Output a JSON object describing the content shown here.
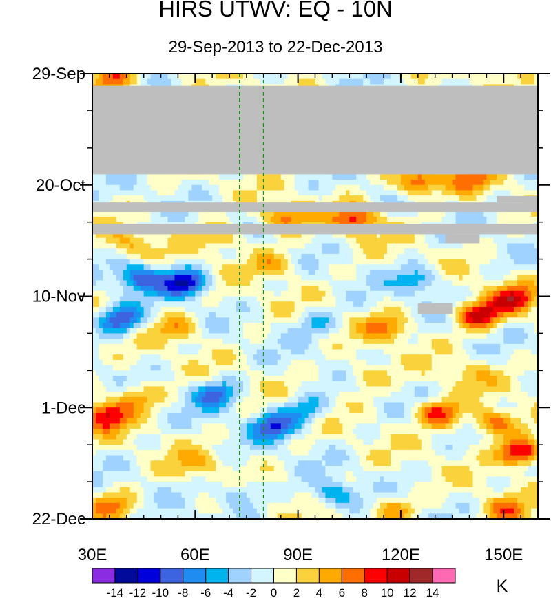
{
  "chart_data": {
    "type": "heatmap",
    "title": "HIRS UTWV: EQ - 10N",
    "subtitle": "29-Sep-2013 to 22-Dec-2013",
    "x_axis": {
      "range": [
        30,
        160
      ],
      "ticks": [
        {
          "value": 30,
          "label": "30E"
        },
        {
          "value": 60,
          "label": "60E"
        },
        {
          "value": 90,
          "label": "90E"
        },
        {
          "value": 120,
          "label": "120E"
        },
        {
          "value": 150,
          "label": "150E"
        }
      ],
      "minor_step": 5,
      "reference_lines": [
        73,
        80
      ]
    },
    "y_axis": {
      "range_days": [
        0,
        84
      ],
      "orientation": "top-to-bottom",
      "ticks": [
        {
          "day": 0,
          "label": "29-Sep"
        },
        {
          "day": 21,
          "label": "20-Oct"
        },
        {
          "day": 42,
          "label": "10-Nov"
        },
        {
          "day": 63,
          "label": "1-Dec"
        },
        {
          "day": 84,
          "label": "22-Dec"
        }
      ],
      "minor_step": 7
    },
    "missing_data": [
      {
        "lon": [
          30,
          160
        ],
        "day": [
          2.3,
          19.0
        ]
      },
      {
        "lon": [
          30,
          160
        ],
        "day": [
          24.3,
          26.1
        ]
      },
      {
        "lon": [
          148,
          160
        ],
        "day": [
          23.1,
          24.3
        ]
      },
      {
        "lon": [
          30,
          160
        ],
        "day": [
          28.3,
          30.3
        ]
      },
      {
        "lon": [
          133,
          143
        ],
        "day": [
          30.3,
          32.0
        ]
      },
      {
        "lon": [
          125,
          135
        ],
        "day": [
          43.3,
          45.3
        ]
      }
    ],
    "anomaly_features": [
      {
        "lon": 57,
        "day": 39.5,
        "value": -12
      },
      {
        "lon": 44,
        "day": 38.5,
        "value": -9
      },
      {
        "lon": 38,
        "day": 46.5,
        "value": -10
      },
      {
        "lon": 66,
        "day": 60.5,
        "value": -8
      },
      {
        "lon": 83,
        "day": 66.5,
        "value": -9
      },
      {
        "lon": 92,
        "day": 63.5,
        "value": -6
      },
      {
        "lon": 100,
        "day": 79.5,
        "value": -6
      },
      {
        "lon": 73,
        "day": 79,
        "value": -5
      },
      {
        "lon": 143,
        "day": 45.5,
        "value": 11
      },
      {
        "lon": 153,
        "day": 42.5,
        "value": 9
      },
      {
        "lon": 131,
        "day": 64,
        "value": 9
      },
      {
        "lon": 147,
        "day": 66,
        "value": 8
      },
      {
        "lon": 155,
        "day": 71.5,
        "value": 12
      },
      {
        "lon": 34,
        "day": 64.5,
        "value": 10
      },
      {
        "lon": 43,
        "day": 61,
        "value": 6
      },
      {
        "lon": 107,
        "day": 27.5,
        "value": 9
      },
      {
        "lon": 86,
        "day": 27.2,
        "value": 7
      },
      {
        "lon": 125,
        "day": 20.5,
        "value": 9
      },
      {
        "lon": 140,
        "day": 19.8,
        "value": 6
      },
      {
        "lon": 36,
        "day": 1.2,
        "value": 8
      },
      {
        "lon": 118,
        "day": 82,
        "value": 5
      },
      {
        "lon": 150,
        "day": 82.5,
        "value": 6
      },
      {
        "lon": 36,
        "day": 81.5,
        "value": 6
      },
      {
        "lon": 83,
        "day": 36,
        "value": 5
      },
      {
        "lon": 116,
        "day": 48,
        "value": 6
      },
      {
        "lon": 55,
        "day": 48,
        "value": 5
      },
      {
        "lon": 95,
        "day": 47,
        "value": -4
      },
      {
        "lon": 125,
        "day": 39,
        "value": -6
      },
      {
        "lon": 110,
        "day": 57,
        "value": 4
      },
      {
        "lon": 140,
        "day": 57,
        "value": 3
      },
      {
        "lon": 60,
        "day": 74,
        "value": 4
      },
      {
        "lon": 40,
        "day": 32,
        "value": 4
      },
      {
        "lon": 68,
        "day": 31,
        "value": 5
      }
    ],
    "colorbar": {
      "unit": "K",
      "levels": [
        -14,
        -12,
        -10,
        -8,
        -6,
        -4,
        -2,
        0,
        2,
        4,
        6,
        8,
        10,
        12,
        14
      ],
      "colors": [
        "#8b2be2",
        "#020a9b",
        "#0000dc",
        "#3c64e0",
        "#1e8cf0",
        "#00b4f0",
        "#a0d2ff",
        "#d2f5ff",
        "#ffffc8",
        "#fad23c",
        "#ffaa00",
        "#ff6e00",
        "#ff0000",
        "#c80000",
        "#a02828",
        "#ff69b4"
      ],
      "missing_color": "#bebebe",
      "reference_line_color": "#228b22"
    }
  }
}
